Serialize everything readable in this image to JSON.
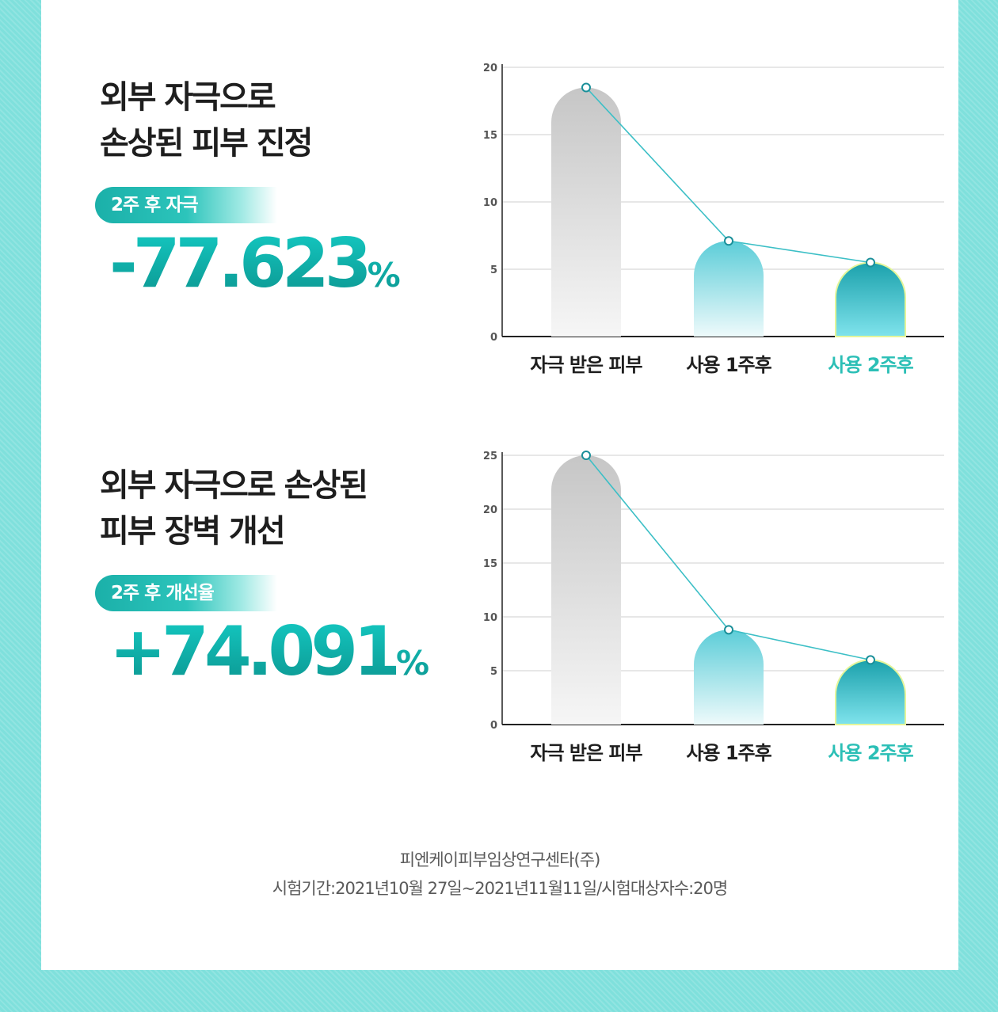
{
  "sections": [
    {
      "title": "외부 자극으로\n손상된 피부 진정",
      "badge": "2주 후 자극",
      "value": "-77.623",
      "unit": "%"
    },
    {
      "title": "외부 자극으로 손상된\n피부 장벽 개선",
      "badge": "2주 후 개선율",
      "value": "+74.091",
      "unit": "%"
    }
  ],
  "chart_data": [
    {
      "type": "bar",
      "categories": [
        "자극 받은 피부",
        "사용 1주후",
        "사용 2주후"
      ],
      "values": [
        18.5,
        7.1,
        5.5
      ],
      "yticks": [
        0,
        5,
        10,
        15,
        20
      ],
      "ylim": [
        0,
        20
      ],
      "grid": true,
      "line_overlay": true,
      "highlight_category": "사용 2주후"
    },
    {
      "type": "bar",
      "categories": [
        "자극 받은 피부",
        "사용 1주후",
        "사용 2주후"
      ],
      "values": [
        25,
        8.8,
        6
      ],
      "yticks": [
        0,
        5,
        10,
        15,
        20,
        25
      ],
      "ylim": [
        0,
        25
      ],
      "grid": true,
      "line_overlay": true,
      "highlight_category": "사용 2주후"
    }
  ],
  "colors": {
    "accent": "#2bbfb6",
    "line": "#3cbfc6",
    "bar_gray_top": "#c6c6c6",
    "bar_teal_top": "#5ccdd8",
    "bar_dark_top": "#1ba1ac",
    "background_border": "#7fe0dc"
  },
  "footer": {
    "line1": "피엔케이피부임상연구센타(주)",
    "line2": "시험기간:2021년10월 27일~2021년11월11일/시험대상자수:20명"
  }
}
